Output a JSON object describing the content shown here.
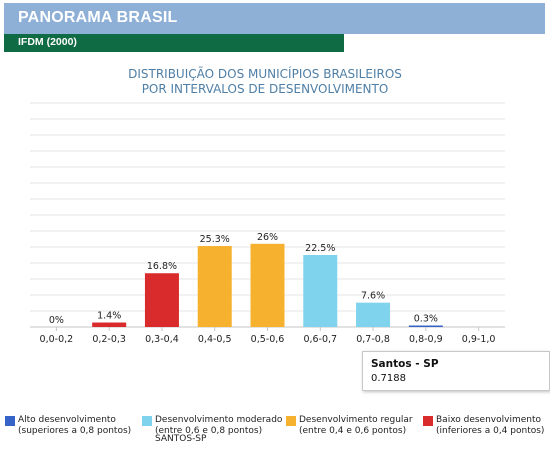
{
  "header": {
    "title": "PANORAMA BRASIL"
  },
  "subheader": {
    "title": "IFDM (2000)"
  },
  "chart_data": {
    "type": "bar",
    "title_lines": [
      "DISTRIBUIÇÃO DOS MUNICÍPIOS BRASILEIROS",
      "POR INTERVALOS DE DESENVOLVIMENTO"
    ],
    "categories": [
      "0,0-0,2",
      "0,2-0,3",
      "0,3-0,4",
      "0,4-0,5",
      "0,5-0,6",
      "0,6-0,7",
      "0,7-0,8",
      "0,8-0,9",
      "0,9-1,0"
    ],
    "values": [
      0,
      1.4,
      16.8,
      25.3,
      26,
      22.5,
      7.6,
      0.3,
      null
    ],
    "value_labels": [
      "0%",
      "1.4%",
      "16.8%",
      "25.3%",
      "26%",
      "22.5%",
      "7.6%",
      "0.3%",
      ""
    ],
    "bar_colors": [
      "#d92b2b",
      "#d92b2b",
      "#d92b2b",
      "#f6b12f",
      "#f6b12f",
      "#7fd3ec",
      "#7fd3ec",
      "#3563c8",
      "#3563c8"
    ],
    "ylim": [
      0,
      70
    ],
    "grid": true,
    "legend_position": "bottom"
  },
  "tooltip": {
    "name": "Santos - SP",
    "value": "0.7188"
  },
  "legend": [
    {
      "label_line1": "Alto desenvolvimento",
      "label_line2": "(superiores a 0,8 pontos)",
      "color": "#3563c8"
    },
    {
      "label_line1": "Desenvolvimento moderado",
      "label_line2": "(entre 0,6 e 0,8 pontos)",
      "color": "#7fd3ec"
    },
    {
      "label_line1": "Desenvolvimento regular",
      "label_line2": "(entre 0,4 e 0,6 pontos)",
      "color": "#f6b12f"
    },
    {
      "label_line1": "Baixo desenvolvimento",
      "label_line2": "(inferiores a 0,4 pontos)",
      "color": "#d92b2b"
    }
  ],
  "highlight_label": "SANTOS-SP"
}
